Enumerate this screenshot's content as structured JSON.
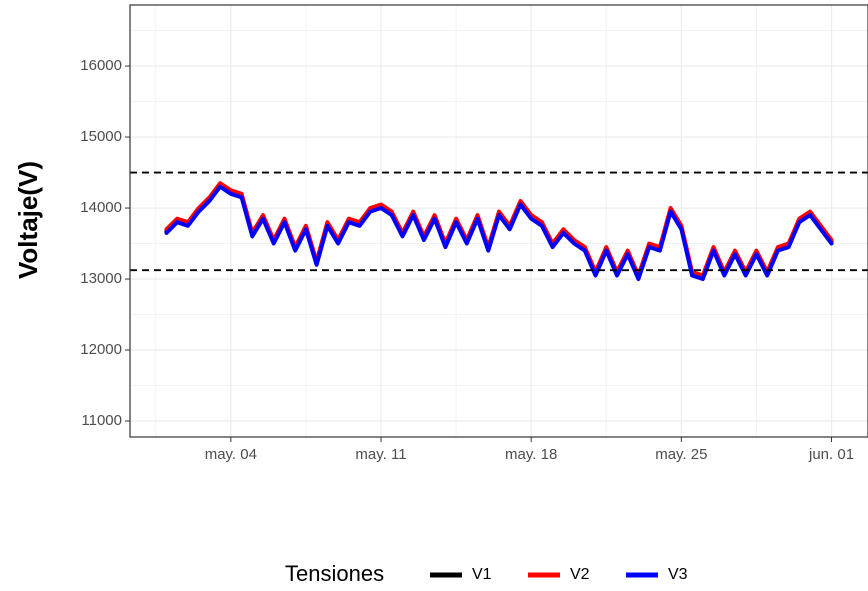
{
  "chart_data": {
    "type": "line",
    "y_label": "Voltaje(V)",
    "legend_title": "Tensiones",
    "legend_position": "bottom",
    "grid": true,
    "xlim": [
      -0.7,
      33.7
    ],
    "xticks": [
      {
        "value": 4,
        "label": "may. 04"
      },
      {
        "value": 11,
        "label": "may. 11"
      },
      {
        "value": 18,
        "label": "may. 18"
      },
      {
        "value": 25,
        "label": "may. 25"
      },
      {
        "value": 32,
        "label": "jun. 01"
      }
    ],
    "ylim": [
      10775,
      16860
    ],
    "yticks": [
      11000,
      12000,
      13000,
      14000,
      15000,
      16000
    ],
    "hlines": [
      14500,
      13125
    ],
    "x": [
      1,
      1.5,
      2,
      2.5,
      3,
      3.5,
      4,
      4.5,
      5,
      5.5,
      6,
      6.5,
      7,
      7.5,
      8,
      8.5,
      9,
      9.5,
      10,
      10.5,
      11,
      11.5,
      12,
      12.5,
      13,
      13.5,
      14,
      14.5,
      15,
      15.5,
      16,
      16.5,
      17,
      17.5,
      18,
      18.5,
      19,
      19.5,
      20,
      20.5,
      21,
      21.5,
      22,
      22.5,
      23,
      23.5,
      24,
      24.5,
      25,
      25.5,
      26,
      26.5,
      27,
      27.5,
      28,
      28.5,
      29,
      29.5,
      30,
      30.5,
      31,
      31.5,
      32
    ],
    "series": [
      {
        "name": "V1",
        "color": "#000000",
        "values": [
          13675,
          13825,
          13775,
          13975,
          14125,
          14325,
          14225,
          14175,
          13625,
          13875,
          13525,
          13825,
          13425,
          13725,
          13225,
          13775,
          13525,
          13825,
          13775,
          13975,
          14025,
          13925,
          13625,
          13925,
          13575,
          13875,
          13475,
          13825,
          13525,
          13875,
          13425,
          13925,
          13725,
          14075,
          13875,
          13775,
          13475,
          13675,
          13525,
          13425,
          13075,
          13425,
          13075,
          13375,
          13025,
          13475,
          13425,
          13975,
          13725,
          13075,
          13025,
          13425,
          13075,
          13375,
          13075,
          13375,
          13075,
          13425,
          13475,
          13825,
          13925,
          13725,
          13525
        ]
      },
      {
        "name": "V2",
        "color": "#ff0000",
        "values": [
          13700,
          13850,
          13800,
          14000,
          14150,
          14350,
          14250,
          14200,
          13650,
          13900,
          13550,
          13850,
          13450,
          13750,
          13250,
          13800,
          13550,
          13850,
          13800,
          14000,
          14050,
          13950,
          13650,
          13950,
          13600,
          13900,
          13500,
          13850,
          13550,
          13900,
          13450,
          13950,
          13750,
          14100,
          13900,
          13800,
          13500,
          13700,
          13550,
          13450,
          13100,
          13450,
          13100,
          13400,
          13050,
          13500,
          13450,
          14000,
          13750,
          13100,
          13050,
          13450,
          13100,
          13400,
          13100,
          13400,
          13100,
          13450,
          13500,
          13850,
          13950,
          13750,
          13550
        ]
      },
      {
        "name": "V3",
        "color": "#0000ff",
        "values": [
          13650,
          13800,
          13750,
          13950,
          14100,
          14300,
          14200,
          14150,
          13600,
          13850,
          13500,
          13800,
          13400,
          13700,
          13200,
          13750,
          13500,
          13800,
          13750,
          13950,
          14000,
          13900,
          13600,
          13900,
          13550,
          13850,
          13450,
          13800,
          13500,
          13850,
          13400,
          13900,
          13700,
          14050,
          13850,
          13750,
          13450,
          13650,
          13500,
          13400,
          13050,
          13400,
          13050,
          13350,
          13000,
          13450,
          13400,
          13950,
          13700,
          13050,
          13000,
          13400,
          13050,
          13350,
          13050,
          13350,
          13050,
          13400,
          13450,
          13800,
          13900,
          13700,
          13500
        ]
      }
    ]
  }
}
